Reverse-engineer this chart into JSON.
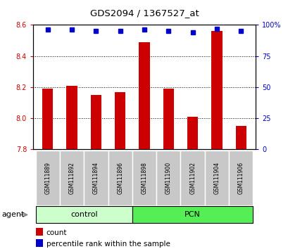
{
  "title": "GDS2094 / 1367527_at",
  "samples": [
    "GSM111889",
    "GSM111892",
    "GSM111894",
    "GSM111896",
    "GSM111898",
    "GSM111900",
    "GSM111902",
    "GSM111904",
    "GSM111906"
  ],
  "counts": [
    8.19,
    8.21,
    8.15,
    8.17,
    8.49,
    8.19,
    8.01,
    8.56,
    7.95
  ],
  "percentiles": [
    96,
    96,
    95,
    95,
    96,
    95,
    94,
    97,
    95
  ],
  "ylim": [
    7.8,
    8.6
  ],
  "yticks": [
    7.8,
    8.0,
    8.2,
    8.4,
    8.6
  ],
  "right_yticks": [
    0,
    25,
    50,
    75,
    100
  ],
  "right_ylabels": [
    "0",
    "25",
    "50",
    "75",
    "100%"
  ],
  "bar_color": "#cc0000",
  "dot_color": "#0000cc",
  "bar_width": 0.45,
  "groups": [
    {
      "label": "control",
      "start": 0,
      "end": 3,
      "color": "#ccffcc",
      "border": "#aaddaa"
    },
    {
      "label": "PCN",
      "start": 4,
      "end": 8,
      "color": "#55ee55",
      "border": "#33cc33"
    }
  ],
  "agent_label": "agent",
  "legend_bar_label": "count",
  "legend_dot_label": "percentile rank within the sample",
  "plot_bg": "#ffffff",
  "left_label_color": "#cc0000",
  "right_label_color": "#0000cc",
  "grid_yticks": [
    8.0,
    8.2,
    8.4
  ],
  "sample_box_color": "#c8c8c8"
}
